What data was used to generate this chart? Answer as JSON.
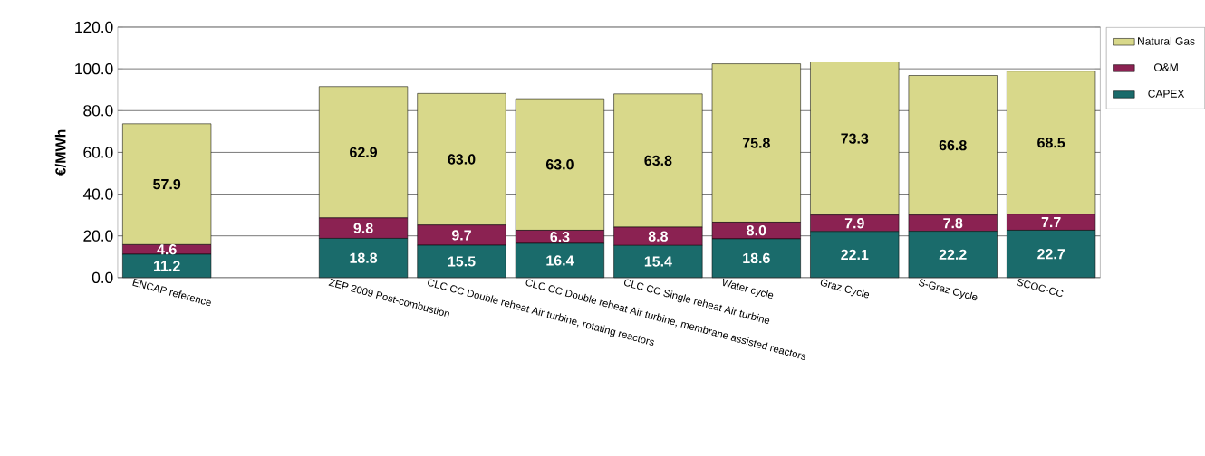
{
  "chart_data": {
    "type": "bar",
    "stacked": true,
    "ylabel": "€/MWh",
    "categories": [
      "ENCAP reference",
      null,
      "ZEP 2009 Post-combustion",
      "CLC CC Double reheat Air turbine, rotating reactors",
      "CLC CC Double reheat Air turbine, membrane assisted reactors",
      "CLC CC Single reheat Air turbine",
      "Water cycle",
      "Graz Cycle",
      "S-Graz Cycle",
      "SCOC-CC"
    ],
    "series": [
      {
        "name": "CAPEX",
        "color": "#1a6b6b",
        "values": [
          11.2,
          null,
          18.8,
          15.5,
          16.4,
          15.4,
          18.6,
          22.1,
          22.2,
          22.7
        ],
        "value_labels": [
          "11.2",
          null,
          "18.8",
          "15.5",
          "16.4",
          "15.4",
          "18.6",
          "22.1",
          "22.2",
          "22.7"
        ]
      },
      {
        "name": "O&M",
        "color": "#8b2252",
        "values": [
          4.6,
          null,
          9.8,
          9.7,
          6.3,
          8.8,
          8.0,
          7.9,
          7.8,
          7.7
        ],
        "value_labels": [
          "4.6",
          null,
          "9.8",
          "9.7",
          "6.3",
          "8.8",
          "8.0",
          "7.9",
          "7.8",
          "7.7"
        ]
      },
      {
        "name": "Natural Gas",
        "color": "#d8d88a",
        "values": [
          57.9,
          null,
          62.9,
          63.0,
          63.0,
          63.8,
          75.8,
          73.3,
          66.8,
          68.5
        ],
        "value_labels": [
          "57.9",
          null,
          "62.9",
          "63.0",
          "63.0",
          "63.8",
          "75.8",
          "73.3",
          "66.8",
          "68.5"
        ]
      }
    ],
    "ylim": [
      0,
      120
    ],
    "yticks": [
      {
        "value": 0,
        "label": "0.0"
      },
      {
        "value": 20,
        "label": "20.0"
      },
      {
        "value": 40,
        "label": "40.0"
      },
      {
        "value": 60,
        "label": "60.0"
      },
      {
        "value": 80,
        "label": "80.0"
      },
      {
        "value": 100,
        "label": "100.0"
      },
      {
        "value": 120,
        "label": "120.0"
      }
    ],
    "grid": "y",
    "legend": "top right"
  }
}
